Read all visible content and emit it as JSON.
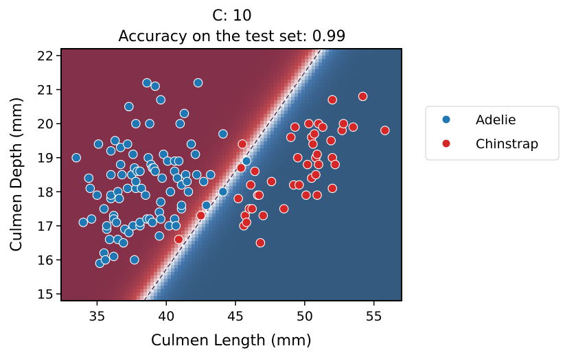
{
  "chart_data": {
    "type": "scatter",
    "title": "C: 10",
    "subtitle": "Accuracy on the test set: 0.99",
    "xlabel": "Culmen Length (mm)",
    "ylabel": "Culmen Depth (mm)",
    "xlim": [
      32.4,
      57.0
    ],
    "ylim": [
      14.8,
      22.2
    ],
    "xticks": [
      35,
      40,
      45,
      50,
      55
    ],
    "yticks": [
      15,
      16,
      17,
      18,
      19,
      20,
      21,
      22
    ],
    "grid": false,
    "legend": "right",
    "background": "decision-boundary probability map",
    "decision_boundary": {
      "x": [
        38.4,
        51.2
      ],
      "y": [
        14.8,
        22.2
      ],
      "style": "dashed"
    },
    "colors": {
      "Adelie": "#1f77b4",
      "Chinstrap": "#d62728",
      "region_low": "#355a80",
      "region_mid": "#f5f5f5",
      "region_high": "#83304a",
      "boundary": "#4a2a55"
    },
    "series": [
      {
        "name": "Adelie",
        "points": [
          [
            33.5,
            19.0
          ],
          [
            34.0,
            17.1
          ],
          [
            34.4,
            18.4
          ],
          [
            34.5,
            18.1
          ],
          [
            34.6,
            17.2
          ],
          [
            35.0,
            17.9
          ],
          [
            35.1,
            19.4
          ],
          [
            35.2,
            15.9
          ],
          [
            35.5,
            16.2
          ],
          [
            35.5,
            17.5
          ],
          [
            35.6,
            16.0
          ],
          [
            35.7,
            16.9
          ],
          [
            35.7,
            17.0
          ],
          [
            35.9,
            16.6
          ],
          [
            36.0,
            17.8
          ],
          [
            36.0,
            17.9
          ],
          [
            36.0,
            18.5
          ],
          [
            36.0,
            19.2
          ],
          [
            36.2,
            16.1
          ],
          [
            36.2,
            17.3
          ],
          [
            36.2,
            17.2
          ],
          [
            36.3,
            19.5
          ],
          [
            36.4,
            17.1
          ],
          [
            36.5,
            16.6
          ],
          [
            36.5,
            18.0
          ],
          [
            36.6,
            17.8
          ],
          [
            36.7,
            18.8
          ],
          [
            36.7,
            19.3
          ],
          [
            36.8,
            18.5
          ],
          [
            36.9,
            16.5
          ],
          [
            37.0,
            16.9
          ],
          [
            37.2,
            18.1
          ],
          [
            37.2,
            19.4
          ],
          [
            37.3,
            16.8
          ],
          [
            37.3,
            20.5
          ],
          [
            37.5,
            18.5
          ],
          [
            37.6,
            17.0
          ],
          [
            37.6,
            19.1
          ],
          [
            37.7,
            16.0
          ],
          [
            37.7,
            18.7
          ],
          [
            37.8,
            18.1
          ],
          [
            37.8,
            18.3
          ],
          [
            37.8,
            20.0
          ],
          [
            37.9,
            18.6
          ],
          [
            38.1,
            17.0
          ],
          [
            38.1,
            17.1
          ],
          [
            38.1,
            18.6
          ],
          [
            38.2,
            18.1
          ],
          [
            38.5,
            17.9
          ],
          [
            38.6,
            17.2
          ],
          [
            38.6,
            21.2
          ],
          [
            38.7,
            19.0
          ],
          [
            38.8,
            17.2
          ],
          [
            38.8,
            20.0
          ],
          [
            38.9,
            18.8
          ],
          [
            39.0,
            17.1
          ],
          [
            39.0,
            18.7
          ],
          [
            39.1,
            18.7
          ],
          [
            39.2,
            18.6
          ],
          [
            39.2,
            21.1
          ],
          [
            39.5,
            16.7
          ],
          [
            39.5,
            17.4
          ],
          [
            39.6,
            17.2
          ],
          [
            39.6,
            17.7
          ],
          [
            39.6,
            20.7
          ],
          [
            39.7,
            18.4
          ],
          [
            39.8,
            19.1
          ],
          [
            40.1,
            18.9
          ],
          [
            40.2,
            17.0
          ],
          [
            40.3,
            18.0
          ],
          [
            40.6,
            17.2
          ],
          [
            40.6,
            18.6
          ],
          [
            40.6,
            18.9
          ],
          [
            40.7,
            17.0
          ],
          [
            40.8,
            18.4
          ],
          [
            40.9,
            18.9
          ],
          [
            41.0,
            20.0
          ],
          [
            41.1,
            17.5
          ],
          [
            41.1,
            18.2
          ],
          [
            41.1,
            17.6
          ],
          [
            41.3,
            20.3
          ],
          [
            41.4,
            18.5
          ],
          [
            41.5,
            18.3
          ],
          [
            41.6,
            18.0
          ],
          [
            41.8,
            19.4
          ],
          [
            42.1,
            19.1
          ],
          [
            42.2,
            18.5
          ],
          [
            42.3,
            21.2
          ],
          [
            42.7,
            18.3
          ],
          [
            42.9,
            17.6
          ],
          [
            43.2,
            18.5
          ],
          [
            44.1,
            18.0
          ],
          [
            44.1,
            19.7
          ],
          [
            45.8,
            18.9
          ]
        ]
      },
      {
        "name": "Chinstrap",
        "points": [
          [
            40.9,
            16.6
          ],
          [
            42.5,
            17.3
          ],
          [
            45.2,
            17.8
          ],
          [
            45.4,
            18.7
          ],
          [
            45.5,
            19.4
          ],
          [
            45.6,
            17.0
          ],
          [
            45.7,
            17.3
          ],
          [
            45.8,
            17.1
          ],
          [
            46.0,
            17.5
          ],
          [
            46.1,
            18.2
          ],
          [
            46.2,
            17.5
          ],
          [
            46.4,
            18.6
          ],
          [
            46.6,
            17.9
          ],
          [
            46.7,
            17.9
          ],
          [
            46.8,
            16.5
          ],
          [
            47.0,
            17.3
          ],
          [
            47.6,
            18.3
          ],
          [
            48.5,
            17.5
          ],
          [
            49.0,
            19.6
          ],
          [
            49.2,
            18.2
          ],
          [
            49.3,
            19.9
          ],
          [
            49.5,
            19.0
          ],
          [
            49.6,
            18.2
          ],
          [
            50.1,
            17.9
          ],
          [
            50.2,
            18.8
          ],
          [
            50.3,
            20.0
          ],
          [
            50.5,
            18.4
          ],
          [
            50.5,
            19.6
          ],
          [
            50.6,
            19.4
          ],
          [
            50.7,
            19.7
          ],
          [
            50.8,
            18.5
          ],
          [
            50.8,
            19.0
          ],
          [
            50.9,
            17.9
          ],
          [
            50.9,
            19.1
          ],
          [
            51.0,
            18.8
          ],
          [
            51.0,
            20.0
          ],
          [
            51.3,
            19.9
          ],
          [
            51.9,
            19.5
          ],
          [
            52.0,
            18.1
          ],
          [
            52.0,
            19.0
          ],
          [
            52.0,
            20.7
          ],
          [
            52.2,
            18.8
          ],
          [
            52.7,
            19.8
          ],
          [
            52.8,
            20.0
          ],
          [
            53.5,
            19.9
          ],
          [
            54.2,
            20.8
          ],
          [
            55.8,
            19.8
          ]
        ]
      }
    ],
    "legend_entries": [
      "Adelie",
      "Chinstrap"
    ]
  }
}
